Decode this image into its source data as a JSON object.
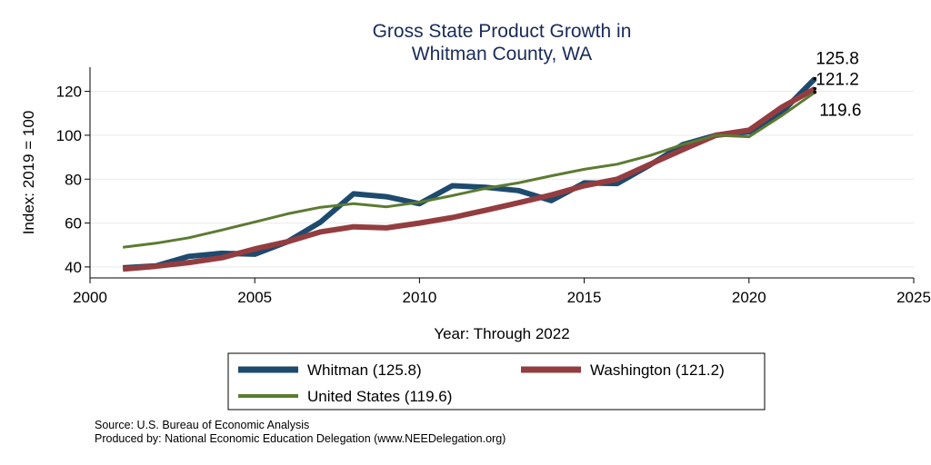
{
  "chart_data": {
    "type": "line",
    "title": [
      "Gross State Product Growth in",
      "Whitman County, WA"
    ],
    "xlabel": "Year: Through 2022",
    "ylabel": "Index: 2019 = 100",
    "xlim": [
      2000,
      2025
    ],
    "ylim": [
      35,
      131
    ],
    "x_ticks": [
      2000,
      2005,
      2010,
      2015,
      2020,
      2025
    ],
    "y_ticks": [
      40,
      60,
      80,
      100,
      120
    ],
    "grid": true,
    "legend_position": "bottom",
    "x": [
      2001,
      2002,
      2003,
      2004,
      2005,
      2006,
      2007,
      2008,
      2009,
      2010,
      2011,
      2012,
      2013,
      2014,
      2015,
      2016,
      2017,
      2018,
      2019,
      2020,
      2021,
      2022
    ],
    "series": [
      {
        "name": "Whitman  (125.8)",
        "color": "#1e4a6e",
        "width": 6,
        "end_label": "125.8",
        "values": [
          39.6,
          40.5,
          44.8,
          46.2,
          45.8,
          51.5,
          60.5,
          73.3,
          72.0,
          68.8,
          77.0,
          76.3,
          74.8,
          70.2,
          78.3,
          78.0,
          86.5,
          95.8,
          100.0,
          101.5,
          110.5,
          125.8
        ]
      },
      {
        "name": "Washington (121.2)",
        "color": "#943d40",
        "width": 6,
        "end_label": "121.2",
        "values": [
          39.0,
          40.3,
          42.0,
          44.2,
          48.2,
          51.5,
          56.0,
          58.3,
          57.8,
          60.0,
          62.5,
          65.8,
          69.2,
          72.8,
          77.0,
          80.0,
          86.8,
          93.5,
          100.0,
          102.3,
          112.8,
          121.2
        ]
      },
      {
        "name": "United States (119.6)",
        "color": "#5c7b32",
        "width": 3,
        "end_label": "119.6",
        "values": [
          49.0,
          50.8,
          53.3,
          56.8,
          60.5,
          64.2,
          67.2,
          68.8,
          67.4,
          69.5,
          72.5,
          75.8,
          78.3,
          81.5,
          84.5,
          86.8,
          90.8,
          95.8,
          100.0,
          99.3,
          109.0,
          119.6
        ]
      }
    ]
  },
  "notes": {
    "source": "Source: U.S. Bureau of Economic Analysis",
    "produced_by": "Produced by: National Economic Education Delegation (www.NEEDelegation.org)"
  }
}
